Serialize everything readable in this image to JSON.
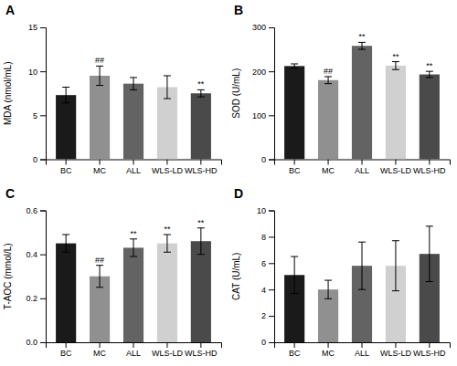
{
  "chart_data": [
    {
      "type": "bar",
      "title": "A",
      "categories": [
        "BC",
        "MC",
        "ALL",
        "WLS-LD",
        "WLS-HD"
      ],
      "values": [
        7.3,
        9.5,
        8.6,
        8.2,
        7.5
      ],
      "errors": [
        0.9,
        1.1,
        0.7,
        1.3,
        0.4
      ],
      "colors": [
        "#1a1a1a",
        "#909090",
        "#636363",
        "#d0d0d0",
        "#4a4a4a"
      ],
      "ylabel": "MDA (nmol/mL)",
      "ylim": [
        0,
        15
      ],
      "yticks": [
        0,
        5,
        10,
        15
      ],
      "annotations": [
        {
          "category": "MC",
          "text": "##"
        },
        {
          "category": "WLS-HD",
          "text": "**"
        }
      ]
    },
    {
      "type": "bar",
      "title": "B",
      "categories": [
        "BC",
        "MC",
        "ALL",
        "WLS-LD",
        "WLS-HD"
      ],
      "values": [
        212,
        180,
        258,
        213,
        193
      ],
      "errors": [
        5,
        8,
        8,
        9,
        7
      ],
      "colors": [
        "#1a1a1a",
        "#909090",
        "#636363",
        "#d0d0d0",
        "#4a4a4a"
      ],
      "ylabel": "SOD (U/mL)",
      "ylim": [
        0,
        300
      ],
      "yticks": [
        0,
        100,
        200,
        300
      ],
      "annotations": [
        {
          "category": "MC",
          "text": "##"
        },
        {
          "category": "ALL",
          "text": "**"
        },
        {
          "category": "WLS-LD",
          "text": "**"
        },
        {
          "category": "WLS-HD",
          "text": "**"
        }
      ]
    },
    {
      "type": "bar",
      "title": "C",
      "categories": [
        "BC",
        "MC",
        "ALL",
        "WLS-LD",
        "WLS-HD"
      ],
      "values": [
        0.45,
        0.3,
        0.43,
        0.45,
        0.46
      ],
      "errors": [
        0.04,
        0.05,
        0.04,
        0.04,
        0.06
      ],
      "colors": [
        "#1a1a1a",
        "#909090",
        "#636363",
        "#d0d0d0",
        "#4a4a4a"
      ],
      "ylabel": "T-AOC (mmol/L)",
      "ylim": [
        0.0,
        0.6
      ],
      "yticks": [
        {
          "value": 0,
          "label": "0.0"
        },
        0.2,
        0.4,
        0.6
      ],
      "annotations": [
        {
          "category": "MC",
          "text": "##"
        },
        {
          "category": "ALL",
          "text": "**"
        },
        {
          "category": "WLS-LD",
          "text": "**"
        },
        {
          "category": "WLS-HD",
          "text": "**"
        }
      ]
    },
    {
      "type": "bar",
      "title": "D",
      "categories": [
        "BC",
        "MC",
        "ALL",
        "WLS-LD",
        "WLS-HD"
      ],
      "values": [
        5.1,
        4.0,
        5.8,
        5.8,
        6.7
      ],
      "errors": [
        1.4,
        0.7,
        1.8,
        1.9,
        2.1
      ],
      "colors": [
        "#1a1a1a",
        "#909090",
        "#636363",
        "#d0d0d0",
        "#4a4a4a"
      ],
      "ylabel": "CAT (U/mL)",
      "ylim": [
        0,
        10
      ],
      "yticks": [
        0,
        2,
        4,
        6,
        8,
        10
      ],
      "annotations": []
    }
  ]
}
